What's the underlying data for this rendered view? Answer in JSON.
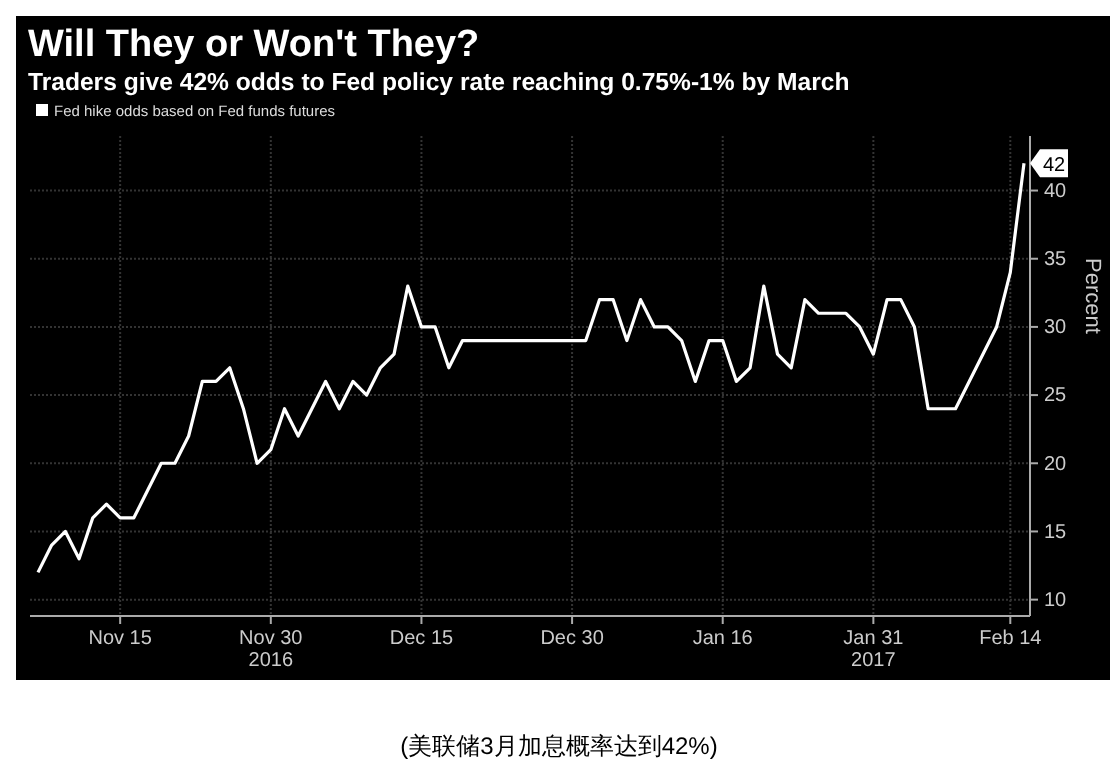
{
  "chart_data": {
    "type": "line",
    "title": "Will They or Won't They?",
    "subtitle": "Traders give 42% odds to Fed policy rate reaching 0.75%-1% by March",
    "ylabel": "Percent",
    "categories": [
      null,
      null,
      null,
      null,
      null,
      null,
      "Nov 15",
      null,
      null,
      null,
      null,
      null,
      null,
      null,
      null,
      null,
      null,
      "Nov 30",
      null,
      null,
      null,
      null,
      null,
      null,
      null,
      null,
      null,
      null,
      "Dec 15",
      null,
      null,
      null,
      null,
      null,
      null,
      null,
      null,
      null,
      null,
      "Dec 30",
      null,
      null,
      null,
      null,
      null,
      null,
      null,
      null,
      null,
      null,
      "Jan 16",
      null,
      null,
      null,
      null,
      null,
      null,
      null,
      null,
      null,
      null,
      "Jan 31",
      null,
      null,
      null,
      null,
      null,
      null,
      null,
      null,
      null,
      "Feb 14",
      null
    ],
    "series": [
      {
        "name": "Fed hike odds based on Fed funds futures",
        "color": "#ffffff",
        "values": [
          12,
          14,
          15,
          13,
          16,
          17,
          16,
          16,
          18,
          20,
          20,
          22,
          26,
          26,
          27,
          24,
          20,
          21,
          24,
          22,
          24,
          26,
          24,
          26,
          25,
          27,
          28,
          33,
          30,
          30,
          27,
          29,
          29,
          29,
          29,
          29,
          29,
          29,
          29,
          29,
          29,
          32,
          32,
          29,
          32,
          30,
          30,
          29,
          26,
          29,
          29,
          26,
          27,
          33,
          28,
          27,
          32,
          31,
          31,
          31,
          30,
          28,
          32,
          32,
          30,
          24,
          24,
          24,
          26,
          28,
          30,
          34,
          42
        ],
        "value_labels": [
          null,
          null,
          null,
          null,
          null,
          null,
          null,
          null,
          null,
          null,
          null,
          null,
          null,
          null,
          null,
          null,
          null,
          null,
          null,
          null,
          null,
          null,
          null,
          null,
          null,
          null,
          null,
          null,
          null,
          null,
          null,
          null,
          null,
          null,
          null,
          null,
          null,
          null,
          null,
          null,
          null,
          null,
          null,
          null,
          null,
          null,
          null,
          null,
          null,
          null,
          null,
          null,
          null,
          null,
          null,
          null,
          null,
          null,
          null,
          null,
          null,
          null,
          null,
          null,
          null,
          null,
          null,
          null,
          null,
          null,
          null,
          null,
          "42"
        ]
      }
    ],
    "ylim": [
      8.8,
      44
    ],
    "yticks": [
      10,
      15,
      20,
      25,
      30,
      35,
      40
    ],
    "grid": true,
    "legend": "top left",
    "marker": "none",
    "line_style": "solid",
    "annotations": [
      "2016",
      "2017",
      "(美联储3月加息概率达到42%)"
    ]
  }
}
